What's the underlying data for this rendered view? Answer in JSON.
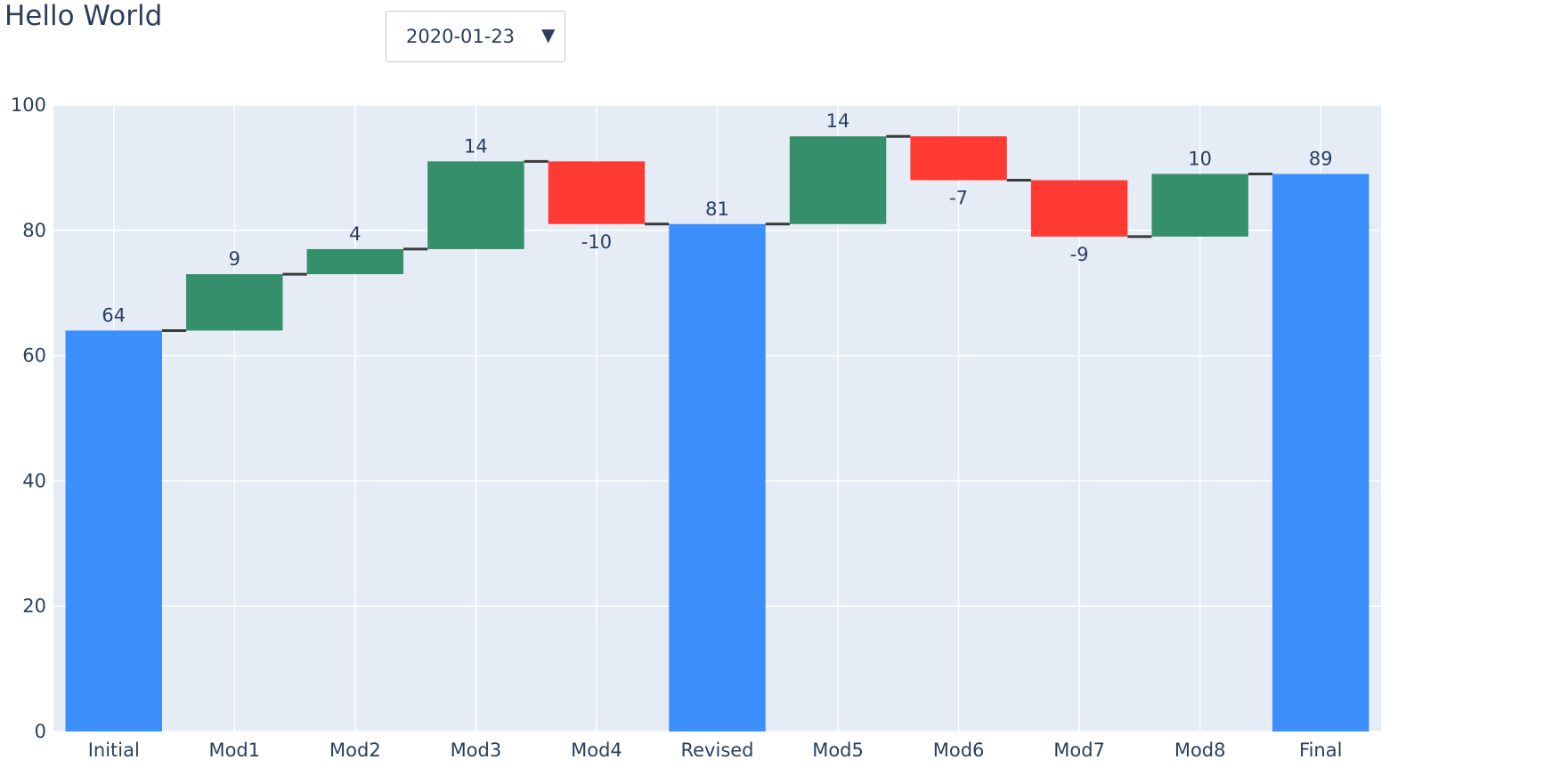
{
  "title": "Hello World",
  "dropdown": {
    "selected": "2020-01-23",
    "arrow_icon": "triangle-down-icon"
  },
  "chart_data": {
    "type": "bar",
    "subtype": "waterfall",
    "categories": [
      "Initial",
      "Mod1",
      "Mod2",
      "Mod3",
      "Mod4",
      "Revised",
      "Mod5",
      "Mod6",
      "Mod7",
      "Mod8",
      "Final"
    ],
    "measure": [
      "absolute",
      "relative",
      "relative",
      "relative",
      "relative",
      "total",
      "relative",
      "relative",
      "relative",
      "relative",
      "total"
    ],
    "values": [
      64,
      9,
      4,
      14,
      -10,
      81,
      14,
      -7,
      -9,
      10,
      89
    ],
    "labels": [
      "64",
      "9",
      "4",
      "14",
      "-10",
      "81",
      "14",
      "-7",
      "-9",
      "10",
      "89"
    ],
    "ylim": [
      0,
      100
    ],
    "yticks": [
      0,
      20,
      40,
      60,
      80,
      100
    ],
    "grid": true,
    "colors": {
      "increasing": "#358f6a",
      "decreasing": "#ff3a33",
      "totals": "#3d8ffd",
      "connector": "#3a3a3a",
      "plot_background": "#e5ecf6",
      "gridline": "#ffffff",
      "text": "#2a3f5f"
    }
  }
}
